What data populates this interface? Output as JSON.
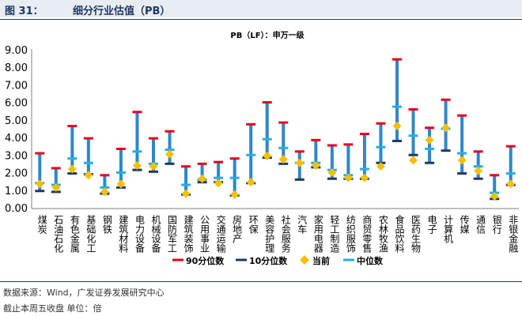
{
  "header": {
    "label": "图 31：",
    "title": "细分行业估值（PB）"
  },
  "footer": {
    "source": "数据来源：Wind，广发证券发展研究中心",
    "note": "截止本周五收盘 单位：倍"
  },
  "colors": {
    "p90": "#e8001c",
    "p10": "#1f3864",
    "current": "#f5c000",
    "median": "#25aee6",
    "range": "#2f87c9"
  },
  "chart_data": {
    "type": "range-dot",
    "title": "PB（LF）：申万一级",
    "ylim": [
      0,
      9
    ],
    "yticks": [
      "0.00",
      "1.00",
      "2.00",
      "3.00",
      "4.00",
      "5.00",
      "6.00",
      "7.00",
      "8.00",
      "9.00"
    ],
    "categories": [
      "煤炭",
      "石油石化",
      "有色金属",
      "基础化工",
      "钢铁",
      "建筑材料",
      "电力设备",
      "机械设备",
      "国防军工",
      "建筑装饰",
      "公用事业",
      "交通运输",
      "房地产",
      "环保",
      "美容护理",
      "社会服务",
      "汽车",
      "家用电器",
      "轻工制造",
      "纺织服饰",
      "商贸零售",
      "农林牧渔",
      "食品饮料",
      "医药生物",
      "电子",
      "计算机",
      "传媒",
      "通信",
      "银行",
      "非银金融"
    ],
    "series": [
      {
        "name": "90分位数",
        "values": [
          3.15,
          2.3,
          4.7,
          4.0,
          1.9,
          3.4,
          5.5,
          4.0,
          4.4,
          2.4,
          2.55,
          2.65,
          2.85,
          4.8,
          6.05,
          4.9,
          3.25,
          3.9,
          3.6,
          3.65,
          4.25,
          4.85,
          8.5,
          5.65,
          4.6,
          6.2,
          5.3,
          3.25,
          1.9,
          3.55
        ]
      },
      {
        "name": "10分位数",
        "values": [
          1.0,
          0.95,
          2.0,
          1.95,
          0.85,
          1.2,
          2.2,
          2.1,
          2.55,
          0.8,
          1.5,
          1.5,
          0.75,
          1.45,
          2.9,
          2.55,
          1.65,
          2.35,
          1.7,
          1.7,
          1.7,
          2.6,
          3.85,
          3.05,
          2.6,
          3.3,
          2.0,
          1.7,
          0.55,
          1.35
        ]
      },
      {
        "name": "当前",
        "values": [
          1.4,
          1.2,
          2.25,
          1.9,
          0.95,
          1.4,
          2.45,
          2.4,
          3.1,
          0.85,
          1.7,
          1.45,
          0.8,
          1.5,
          3.0,
          2.8,
          2.6,
          2.45,
          2.05,
          1.75,
          1.75,
          2.4,
          4.7,
          2.75,
          3.9,
          4.6,
          2.75,
          2.15,
          0.7,
          1.4
        ]
      },
      {
        "name": "中位数",
        "values": [
          1.45,
          1.35,
          2.85,
          2.6,
          1.2,
          2.05,
          3.25,
          2.55,
          3.35,
          1.35,
          1.65,
          1.75,
          1.75,
          3.05,
          3.95,
          3.45,
          2.6,
          2.6,
          2.2,
          1.9,
          2.25,
          3.5,
          5.8,
          4.15,
          3.4,
          4.55,
          3.15,
          2.4,
          0.9,
          2.0
        ]
      }
    ],
    "legend": [
      "90分位数",
      "10分位数",
      "当前",
      "中位数"
    ],
    "legend_position": "bottom",
    "grid": false
  }
}
